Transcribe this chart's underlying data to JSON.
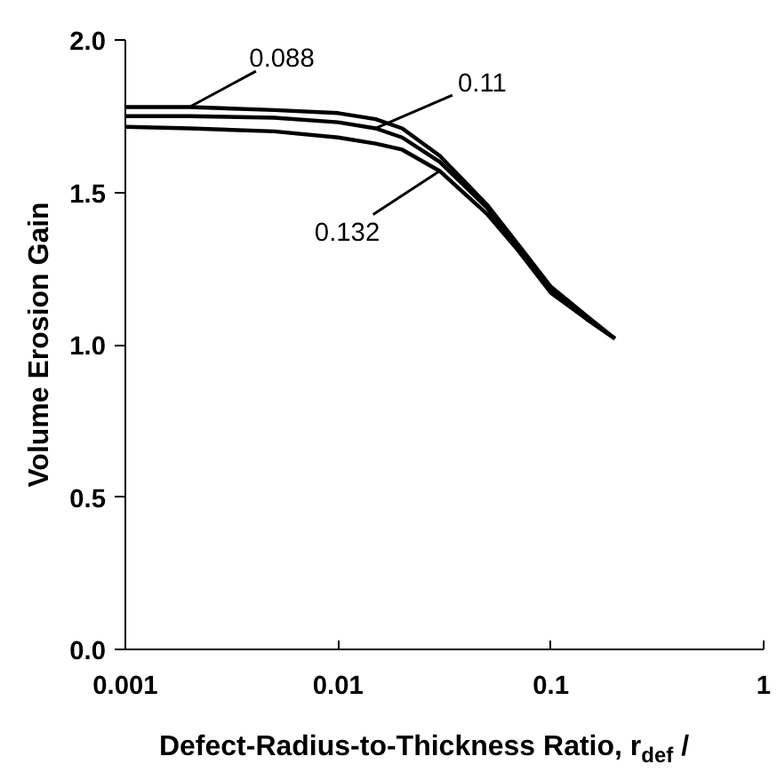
{
  "chart_data": {
    "type": "line",
    "xlabel": "Defect-Radius-to-Thickness Ratio, r$_{def}$ /",
    "ylabel": "Volume Erosion Gain",
    "x": [
      0.001,
      0.002,
      0.005,
      0.01,
      0.015,
      0.02,
      0.03,
      0.05,
      0.07,
      0.1,
      0.15,
      0.2
    ],
    "series": [
      {
        "name": "0.088",
        "color": "#000000",
        "values": [
          1.78,
          1.78,
          1.77,
          1.76,
          1.74,
          1.71,
          1.62,
          1.46,
          1.33,
          1.19,
          1.09,
          1.02
        ]
      },
      {
        "name": "0.11",
        "color": "#000000",
        "values": [
          1.75,
          1.75,
          1.745,
          1.73,
          1.71,
          1.68,
          1.6,
          1.45,
          1.32,
          1.18,
          1.08,
          1.02
        ]
      },
      {
        "name": "0.132",
        "color": "#000000",
        "values": [
          1.715,
          1.71,
          1.7,
          1.68,
          1.66,
          1.64,
          1.57,
          1.43,
          1.31,
          1.17,
          1.08,
          1.02
        ]
      }
    ],
    "log": "x",
    "xlim": [
      0.001,
      1
    ],
    "xticks": [
      0.001,
      0.01,
      0.1,
      1
    ],
    "ylim": [
      0,
      2
    ],
    "yticks": [
      {
        "value": 0,
        "label": "0.0"
      },
      {
        "value": 0.5,
        "label": "0.5"
      },
      {
        "value": 1,
        "label": "1.0"
      },
      {
        "value": 1.5,
        "label": "1.5"
      },
      {
        "value": 2,
        "label": "2.0"
      }
    ],
    "grid": false,
    "marker": "none",
    "line_style": "solid"
  }
}
